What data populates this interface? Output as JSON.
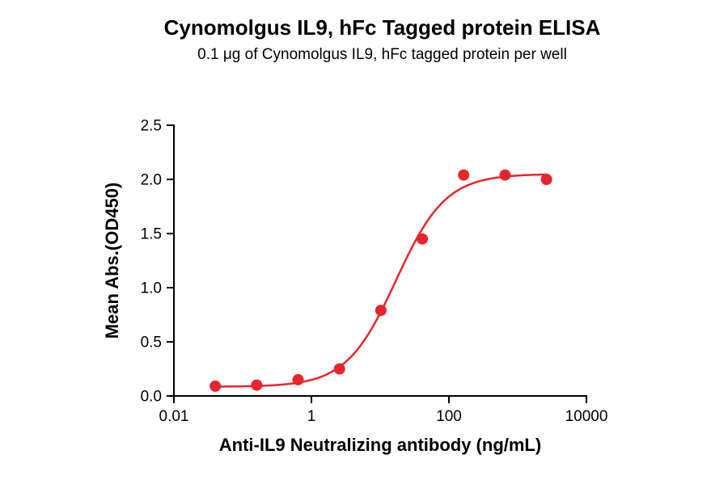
{
  "header": {
    "title": "Cynomolgus IL9, hFc Tagged protein ELISA",
    "subtitle": "0.1 μg of Cynomolgus IL9, hFc tagged protein per well"
  },
  "chart_data": {
    "type": "scatter",
    "title": "Cynomolgus IL9, hFc Tagged protein ELISA",
    "subtitle": "0.1 μg of Cynomolgus IL9, hFc tagged protein per well",
    "xlabel": "Anti-IL9 Neutralizing antibody (ng/mL)",
    "ylabel": "Mean Abs.(OD450)",
    "x_scale": "log10",
    "xlim": [
      0.01,
      10000
    ],
    "ylim": [
      0.0,
      2.5
    ],
    "grid": false,
    "legend": false,
    "x_ticks": [
      {
        "value": 0.01,
        "label": "0.01"
      },
      {
        "value": 1,
        "label": "1"
      },
      {
        "value": 100,
        "label": "100"
      },
      {
        "value": 10000,
        "label": "10000"
      }
    ],
    "y_ticks": [
      {
        "value": 0.0,
        "label": "0.0"
      },
      {
        "value": 0.5,
        "label": "0.5"
      },
      {
        "value": 1.0,
        "label": "1.0"
      },
      {
        "value": 1.5,
        "label": "1.5"
      },
      {
        "value": 2.0,
        "label": "2.0"
      },
      {
        "value": 2.5,
        "label": "2.5"
      }
    ],
    "series": [
      {
        "marker": "circle",
        "color": "#e8252b",
        "x": [
          0.04,
          0.16,
          0.64,
          2.56,
          10.24,
          40.96,
          163.84,
          655.36,
          2621.44
        ],
        "y": [
          0.09,
          0.1,
          0.15,
          0.25,
          0.79,
          1.45,
          2.04,
          2.04,
          2.0
        ]
      }
    ],
    "fit_curve": {
      "model": "4PL",
      "color": "#e8252b",
      "bottom": 0.085,
      "top": 2.05,
      "ec50": 17,
      "hill": 1.2
    },
    "colors": {
      "accent": "#e8252b",
      "axis": "#000000",
      "text": "#000000"
    }
  }
}
